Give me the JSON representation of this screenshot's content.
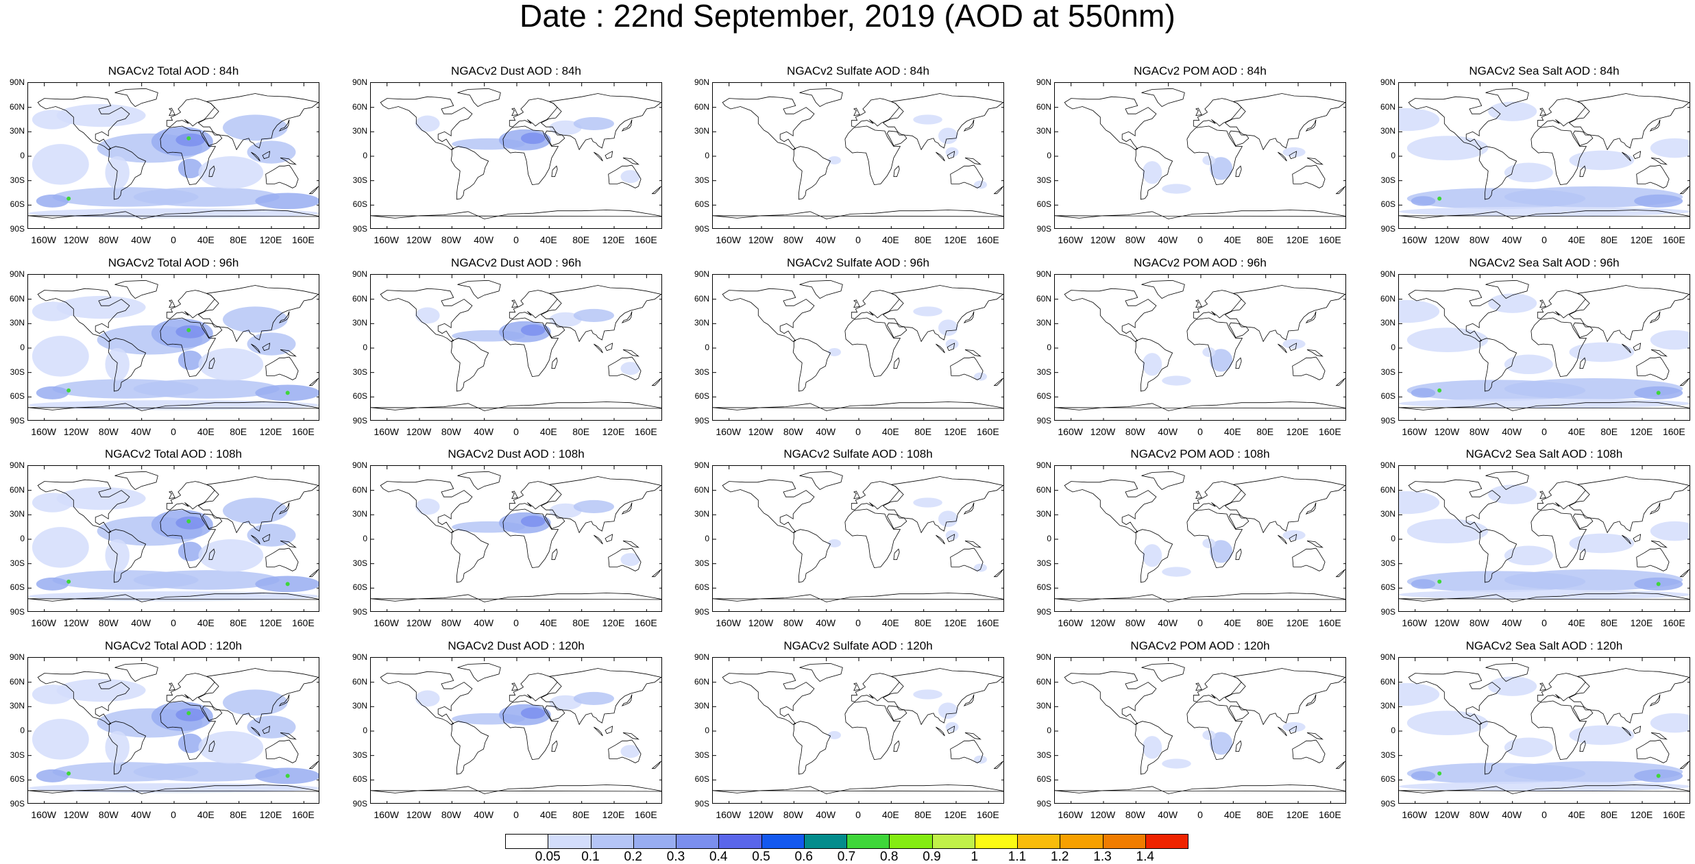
{
  "title": "Date : 22nd September, 2019 (AOD at 550nm)",
  "species": [
    "Total",
    "Dust",
    "Sulfate",
    "POM",
    "Sea Salt"
  ],
  "forecast_hours": [
    "84h",
    "96h",
    "108h",
    "120h"
  ],
  "panels": [
    [
      "NGACv2 Total AOD : 84h",
      "NGACv2 Dust AOD : 84h",
      "NGACv2 Sulfate AOD : 84h",
      "NGACv2 POM AOD : 84h",
      "NGACv2 Sea Salt AOD : 84h"
    ],
    [
      "NGACv2 Total AOD : 96h",
      "NGACv2 Dust AOD : 96h",
      "NGACv2 Sulfate AOD : 96h",
      "NGACv2 POM AOD : 96h",
      "NGACv2 Sea Salt AOD : 96h"
    ],
    [
      "NGACv2 Total AOD : 108h",
      "NGACv2 Dust AOD : 108h",
      "NGACv2 Sulfate AOD : 108h",
      "NGACv2 POM AOD : 108h",
      "NGACv2 Sea Salt AOD : 108h"
    ],
    [
      "NGACv2 Total AOD : 120h",
      "NGACv2 Dust AOD : 120h",
      "NGACv2 Sulfate AOD : 120h",
      "NGACv2 POM AOD : 120h",
      "NGACv2 Sea Salt  AOD : 120h"
    ]
  ],
  "lat_ticks": [
    "90N",
    "60N",
    "30N",
    "0",
    "30S",
    "60S",
    "90S"
  ],
  "lon_ticks": [
    "160W",
    "120W",
    "80W",
    "40W",
    "0",
    "40E",
    "80E",
    "120E",
    "160E"
  ],
  "lon_tick_values": [
    -160,
    -120,
    -80,
    -40,
    0,
    40,
    80,
    120,
    160
  ],
  "colorbar": {
    "labels": [
      "0.05",
      "0.1",
      "0.2",
      "0.3",
      "0.4",
      "0.5",
      "0.6",
      "0.7",
      "0.8",
      "0.9",
      "1",
      "1.1",
      "1.2",
      "1.3",
      "1.4"
    ],
    "colors": [
      "#ffffff",
      "#d3ddfb",
      "#b5c5f6",
      "#98adf1",
      "#7b8fee",
      "#5a66ea",
      "#1459ef",
      "#038c8c",
      "#3fd63a",
      "#84ec12",
      "#c1f049",
      "#fbfa14",
      "#f9bc0b",
      "#f7a000",
      "#f07d00",
      "#ef2400"
    ]
  },
  "map_colors": {
    "light": "#d3ddfb",
    "mid": "#b5c5f6",
    "strong": "#98adf1",
    "deep": "#7b8fee",
    "green": "#3fd63a"
  }
}
